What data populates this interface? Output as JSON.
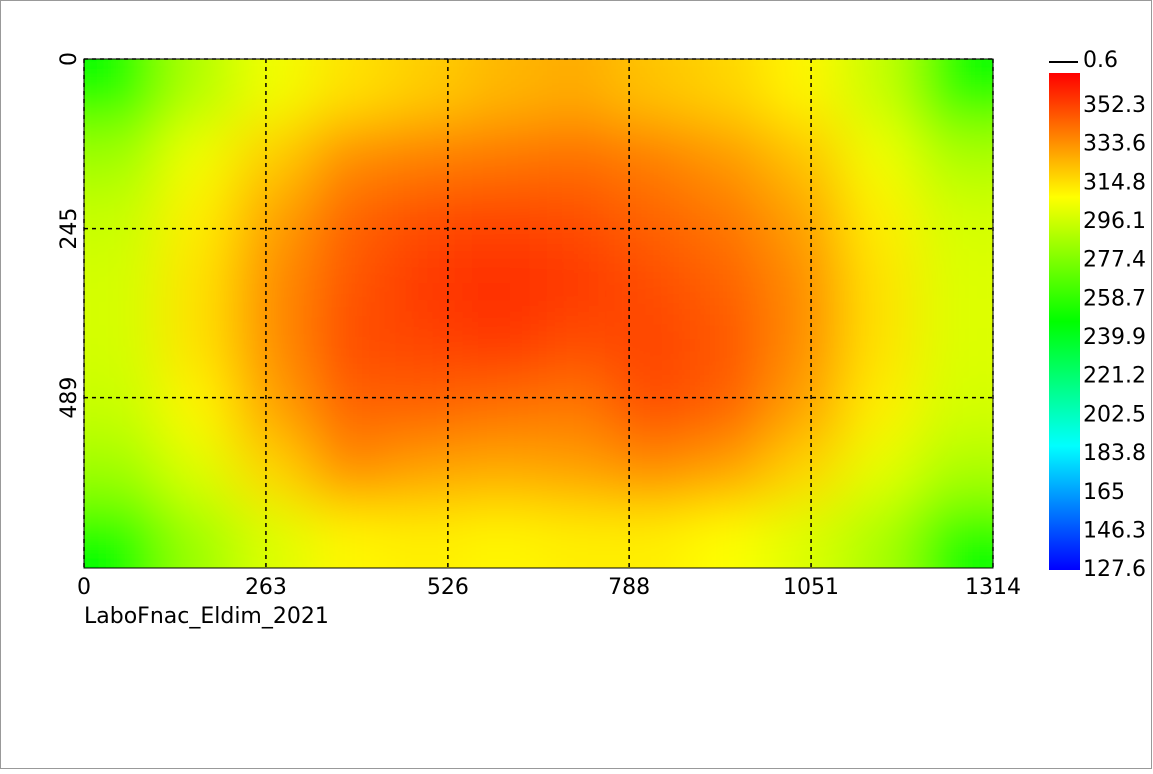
{
  "chart_data": {
    "type": "heatmap",
    "title": "LaboFnac_Eldim_2021",
    "xlim": [
      0,
      1314
    ],
    "xticks": [
      0,
      263,
      526,
      788,
      1051,
      1314
    ],
    "ylim": [
      0,
      735
    ],
    "yticks": [
      0,
      245,
      489
    ],
    "grid": true,
    "z": [
      [
        250,
        290,
        305,
        315,
        320,
        325,
        328,
        322,
        318,
        310,
        295,
        252
      ],
      [
        285,
        305,
        320,
        335,
        338,
        340,
        342,
        338,
        332,
        322,
        305,
        288
      ],
      [
        295,
        312,
        330,
        345,
        350,
        352,
        350,
        345,
        340,
        330,
        312,
        298
      ],
      [
        298,
        315,
        335,
        348,
        355,
        358,
        355,
        350,
        345,
        335,
        315,
        300
      ],
      [
        298,
        315,
        335,
        350,
        352,
        355,
        350,
        352,
        348,
        335,
        315,
        300
      ],
      [
        295,
        310,
        330,
        345,
        345,
        342,
        340,
        350,
        345,
        330,
        312,
        298
      ],
      [
        285,
        300,
        318,
        335,
        330,
        328,
        330,
        335,
        330,
        318,
        302,
        288
      ],
      [
        248,
        285,
        300,
        310,
        312,
        310,
        312,
        312,
        308,
        300,
        288,
        250
      ]
    ],
    "colorscale": [
      "#0000ff",
      "#00ffff",
      "#00ff00",
      "#ffff00",
      "#ff0000"
    ],
    "clim": [
      127.6,
      368.3
    ],
    "cticks": [
      127.6,
      146.3,
      165.0,
      183.8,
      202.5,
      221.2,
      239.9,
      258.7,
      277.4,
      296.1,
      314.8,
      333.6,
      352.3
    ],
    "contour_legend": 0.6
  }
}
